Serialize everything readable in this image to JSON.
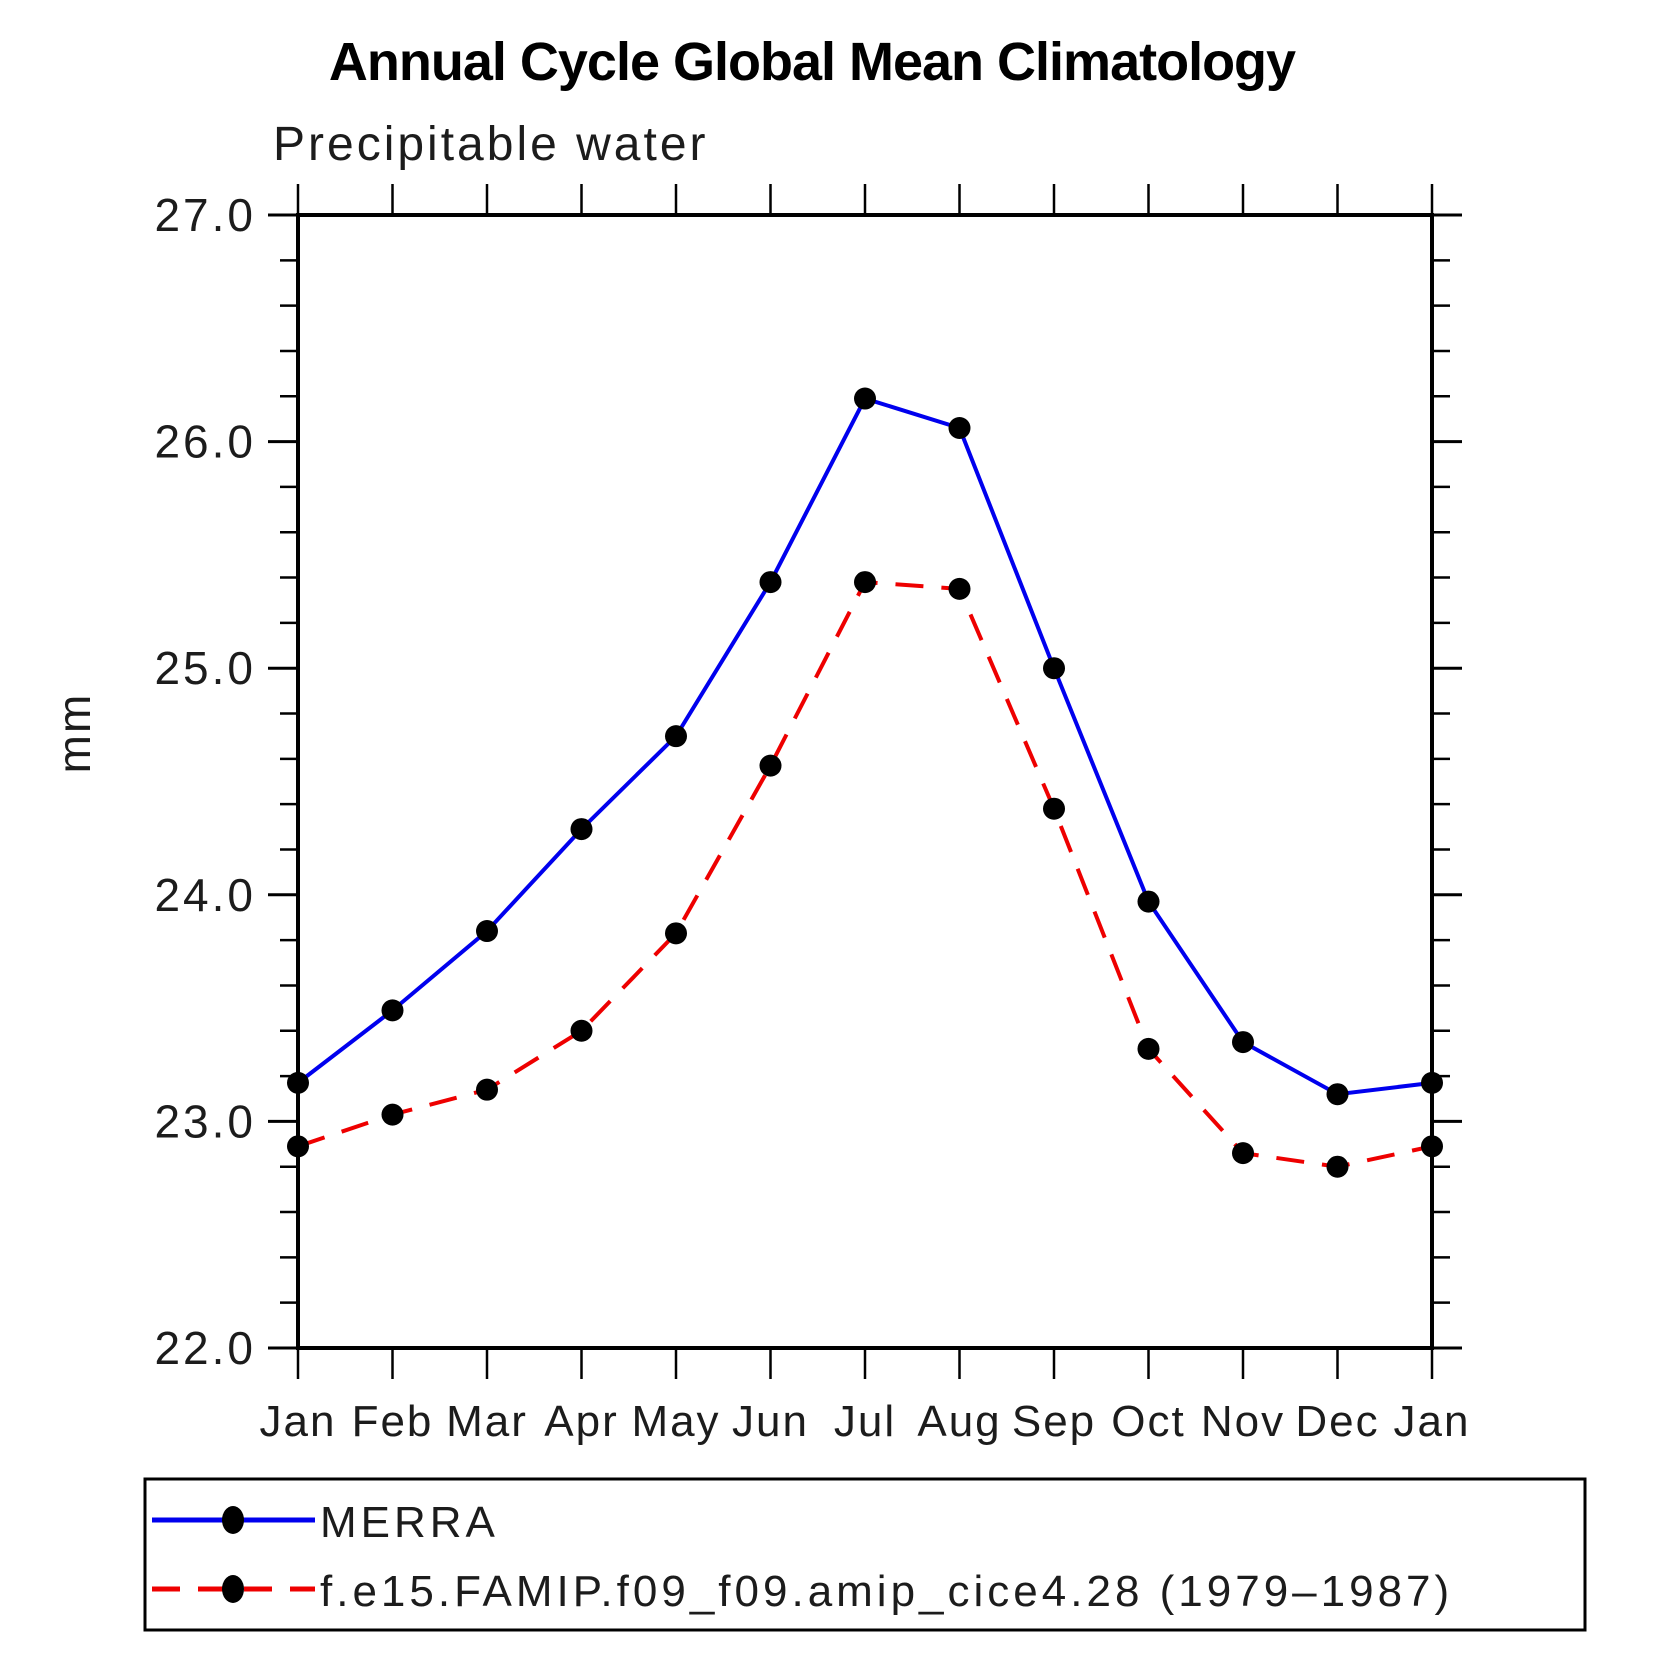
{
  "title": "Annual Cycle Global Mean Climatology",
  "subtitle": "Precipitable water",
  "chart_data": {
    "type": "line",
    "title": "Annual Cycle Global Mean Climatology",
    "subtitle": "Precipitable water",
    "xlabel": "",
    "ylabel": "mm",
    "categories": [
      "Jan",
      "Feb",
      "Mar",
      "Apr",
      "May",
      "Jun",
      "Jul",
      "Aug",
      "Sep",
      "Oct",
      "Nov",
      "Dec",
      "Jan"
    ],
    "ylim": [
      22.0,
      27.0
    ],
    "ytick_major_labels": [
      "22.0",
      "23.0",
      "24.0",
      "25.0",
      "26.0",
      "27.0"
    ],
    "ytick_major_values": [
      22.0,
      23.0,
      24.0,
      25.0,
      26.0,
      27.0
    ],
    "ytick_minor_step": 0.2,
    "grid": false,
    "legend_position": "bottom-left-box",
    "frame_color": "#000000",
    "marker_color": "#000000",
    "series": [
      {
        "name": "MERRA",
        "color": "#0000ee",
        "style": "solid",
        "marker": "circle",
        "values": [
          23.17,
          23.49,
          23.84,
          24.29,
          24.7,
          25.38,
          26.19,
          26.06,
          25.0,
          23.97,
          23.35,
          23.12,
          23.17
        ]
      },
      {
        "name": "f.e15.FAMIP.f09_f09.amip_cice4.28 (1979–1987)",
        "color": "#ee0000",
        "style": "dashed",
        "marker": "circle",
        "values": [
          22.89,
          23.03,
          23.14,
          23.4,
          23.83,
          24.57,
          25.38,
          25.35,
          24.38,
          23.32,
          22.86,
          22.8,
          22.89
        ]
      }
    ]
  }
}
